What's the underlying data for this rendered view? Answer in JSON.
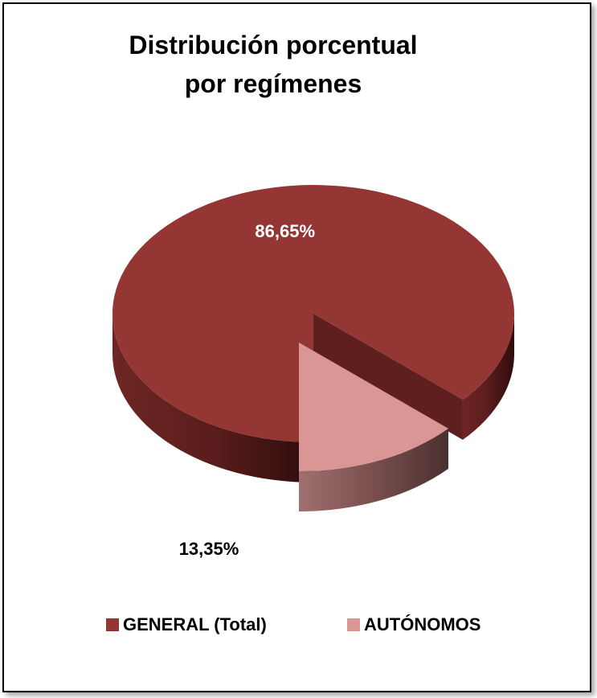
{
  "chart_data": {
    "type": "pie",
    "title_line1": "Distribución porcentual",
    "title_line2": "por regímenes",
    "slices": [
      {
        "name": "GENERAL (Total)",
        "value": 86.65,
        "label": "86,65%",
        "color": "#943634"
      },
      {
        "name": "AUTÓNOMOS",
        "value": 13.35,
        "label": "13,35%",
        "color": "#DA9694"
      }
    ],
    "legend_position": "bottom",
    "exploded": true,
    "three_d": true
  }
}
